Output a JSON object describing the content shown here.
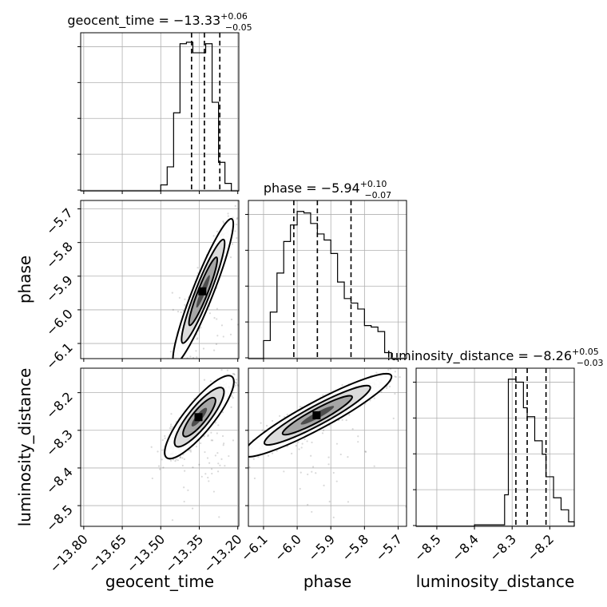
{
  "chart_data": {
    "type": "corner",
    "parameters": [
      "geocent_time",
      "phase",
      "luminosity_distance"
    ],
    "titles": [
      {
        "name": "geocent_time",
        "median": "−13.33",
        "plus": "+0.06",
        "minus": "−0.05"
      },
      {
        "name": "phase",
        "median": "−5.94",
        "plus": "+0.10",
        "minus": "−0.07"
      },
      {
        "name": "luminosity_distance",
        "median": "−8.26",
        "plus": "+0.05",
        "minus": "−0.03"
      }
    ],
    "ranges": {
      "geocent_time": [
        -13.812,
        -13.196
      ],
      "phase": [
        -6.145,
        -5.675
      ],
      "luminosity_distance": [
        -8.555,
        -8.135
      ]
    },
    "ticks": {
      "geocent_time": [
        {
          "v": -13.8,
          "label": "−13.80"
        },
        {
          "v": -13.65,
          "label": "−13.65"
        },
        {
          "v": -13.5,
          "label": "−13.50"
        },
        {
          "v": -13.35,
          "label": "−13.35"
        },
        {
          "v": -13.2,
          "label": "−13.20"
        }
      ],
      "phase": [
        {
          "v": -6.1,
          "label": "−6.1"
        },
        {
          "v": -6.0,
          "label": "−6.0"
        },
        {
          "v": -5.9,
          "label": "−5.9"
        },
        {
          "v": -5.8,
          "label": "−5.8"
        },
        {
          "v": -5.7,
          "label": "−5.7"
        }
      ],
      "luminosity_distance": [
        {
          "v": -8.5,
          "label": "−8.5"
        },
        {
          "v": -8.4,
          "label": "−8.4"
        },
        {
          "v": -8.3,
          "label": "−8.3"
        },
        {
          "v": -8.2,
          "label": "−8.2"
        }
      ]
    },
    "quantiles": {
      "geocent_time": [
        -13.38,
        -13.33,
        -13.27
      ],
      "phase": [
        -6.01,
        -5.94,
        -5.84
      ],
      "luminosity_distance": [
        -8.29,
        -8.26,
        -8.21
      ]
    },
    "histograms": {
      "geocent_time": {
        "edges": [
          -13.5,
          -13.475,
          -13.45,
          -13.425,
          -13.4,
          -13.375,
          -13.35,
          -13.325,
          -13.3,
          -13.275,
          -13.25,
          -13.225,
          -13.2
        ],
        "counts": [
          0.04,
          0.16,
          0.52,
          0.98,
          0.99,
          0.92,
          0.92,
          0.98,
          0.59,
          0.19,
          0.05,
          0.0
        ]
      },
      "phase": {
        "edges": [
          -6.1,
          -6.08,
          -6.06,
          -6.04,
          -6.02,
          -6.0,
          -5.98,
          -5.96,
          -5.94,
          -5.92,
          -5.9,
          -5.88,
          -5.86,
          -5.84,
          -5.82,
          -5.8,
          -5.78,
          -5.76,
          -5.74,
          -5.72
        ],
        "counts": [
          0.12,
          0.31,
          0.57,
          0.78,
          0.89,
          0.98,
          0.97,
          0.9,
          0.83,
          0.79,
          0.7,
          0.51,
          0.4,
          0.37,
          0.33,
          0.22,
          0.21,
          0.18,
          0.04
        ]
      },
      "luminosity_distance": {
        "edges": [
          -8.4,
          -8.32,
          -8.31,
          -8.29,
          -8.27,
          -8.26,
          -8.24,
          -8.22,
          -8.21,
          -8.19,
          -8.17,
          -8.15,
          -8.135
        ],
        "counts": [
          0.01,
          0.21,
          0.98,
          0.96,
          0.79,
          0.73,
          0.57,
          0.48,
          0.33,
          0.19,
          0.11,
          0.03
        ]
      }
    },
    "density_2d": [
      {
        "x": "geocent_time",
        "y": "phase",
        "center": [
          -13.335,
          -5.945
        ],
        "sd": [
          0.048,
          0.088
        ],
        "rho": 0.93
      },
      {
        "x": "geocent_time",
        "y": "luminosity_distance",
        "center": [
          -13.35,
          -8.265
        ],
        "sd": [
          0.055,
          0.045
        ],
        "rho": 0.85
      },
      {
        "x": "phase",
        "y": "luminosity_distance",
        "center": [
          -5.94,
          -8.26
        ],
        "sd": [
          0.09,
          0.045
        ],
        "rho": 0.93
      }
    ],
    "grid": true
  }
}
